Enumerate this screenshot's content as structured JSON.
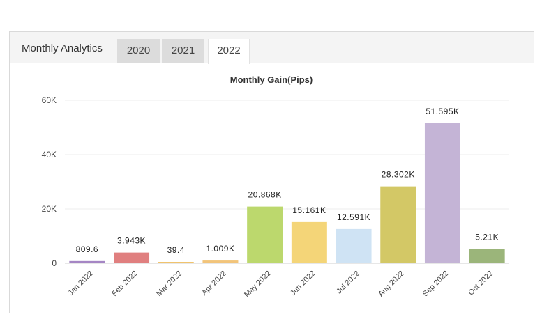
{
  "widget": {
    "title": "Monthly Analytics",
    "tabs": [
      {
        "label": "2020",
        "active": false
      },
      {
        "label": "2021",
        "active": false
      },
      {
        "label": "2022",
        "active": true
      }
    ]
  },
  "chart_data": {
    "type": "bar",
    "title": "Monthly Gain(Pips)",
    "xlabel": "",
    "ylabel": "",
    "ylim": [
      0,
      60000
    ],
    "yticks": [
      {
        "value": 0,
        "label": "0"
      },
      {
        "value": 20000,
        "label": "20K"
      },
      {
        "value": 40000,
        "label": "40K"
      },
      {
        "value": 60000,
        "label": "60K"
      }
    ],
    "grid": true,
    "categories": [
      "Jan 2022",
      "Feb 2022",
      "Mar 2022",
      "Apr 2022",
      "May 2022",
      "Jun 2022",
      "Jul 2022",
      "Aug 2022",
      "Sep 2022",
      "Oct 2022"
    ],
    "values": [
      809.6,
      3943,
      39.4,
      1009,
      20868,
      15161,
      12591,
      28302,
      51595,
      5210
    ],
    "data_labels": [
      "809.6",
      "3.943K",
      "39.4",
      "1.009K",
      "20.868K",
      "15.161K",
      "12.591K",
      "28.302K",
      "51.595K",
      "5.21K"
    ],
    "colors": [
      "#a586c4",
      "#e07f7f",
      "#f0c36d",
      "#f2c47a",
      "#bcd86d",
      "#f4d578",
      "#cfe3f4",
      "#d3c866",
      "#c4b4d6",
      "#9bb57a"
    ]
  }
}
